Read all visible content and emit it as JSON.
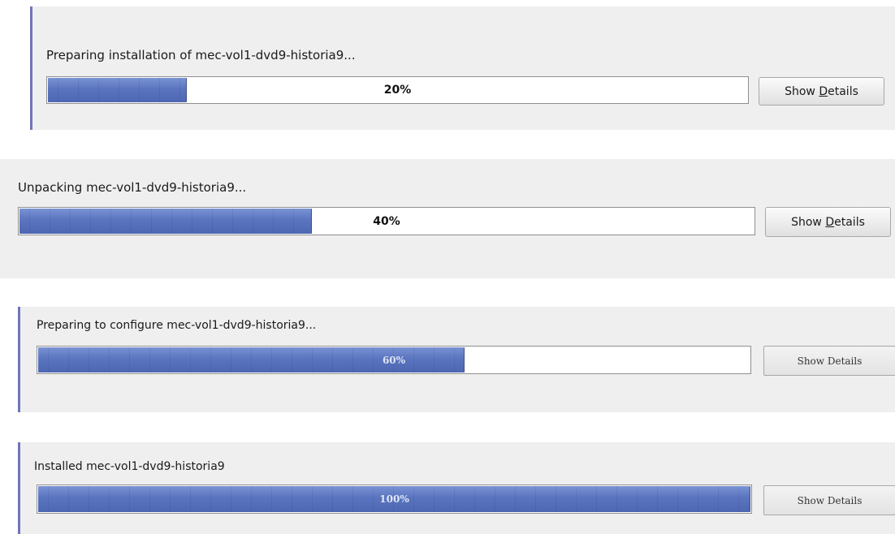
{
  "progress_dialogs": [
    {
      "status": "Preparing installation of mec-vol1-dvd9-historia9...",
      "progress_fraction": 0.2,
      "progress_label": "20%",
      "button_pre": "Show ",
      "button_mnemonic": "D",
      "button_post": "etails"
    },
    {
      "status": "Unpacking mec-vol1-dvd9-historia9...",
      "progress_fraction": 0.4,
      "progress_label": "40%",
      "button_pre": "Show ",
      "button_mnemonic": "D",
      "button_post": "etails"
    },
    {
      "status": "Preparing to configure mec-vol1-dvd9-historia9...",
      "progress_fraction": 0.6,
      "progress_label": "60%",
      "button_pre": "Show ",
      "button_mnemonic": "",
      "button_post": "Details"
    },
    {
      "status": "Installed mec-vol1-dvd9-historia9",
      "progress_fraction": 1.0,
      "progress_label": "100%",
      "button_pre": "Show ",
      "button_mnemonic": "",
      "button_post": "Details"
    }
  ],
  "colors": {
    "panel_background": "#efefef",
    "accent_border": "#6f75b8",
    "progress_fill": "#5b78c2"
  }
}
